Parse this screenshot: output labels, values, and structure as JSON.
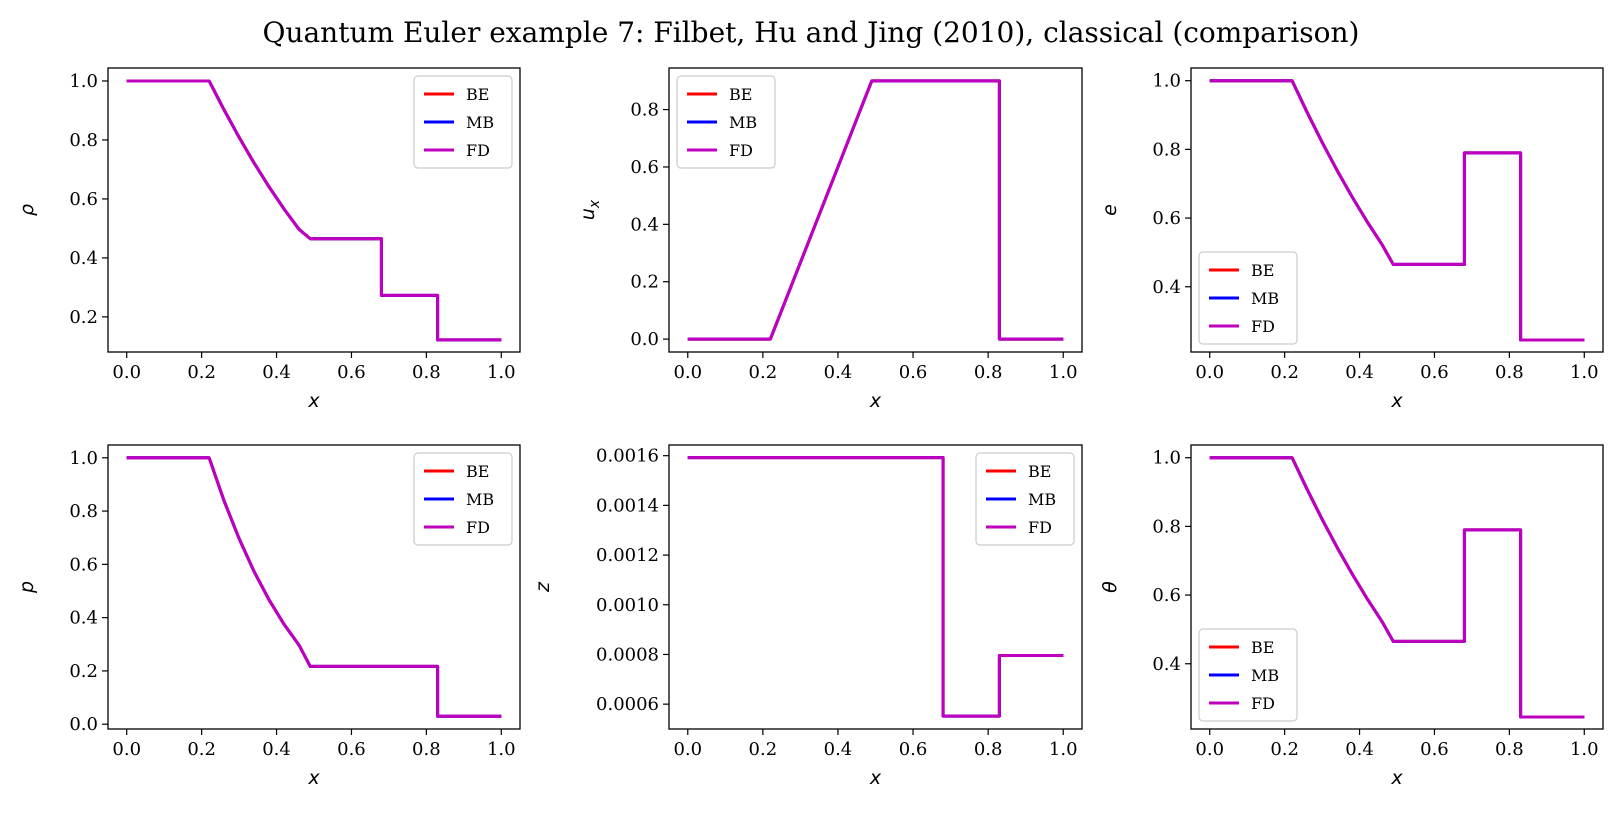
{
  "figure": {
    "title": "Quantum Euler example 7: Filbet, Hu and Jing (2010), classical (comparison)"
  },
  "colors": {
    "BE": "#ff0000",
    "MB": "#0000ff",
    "FD": "#bf00bf"
  },
  "chart_data": [
    {
      "type": "line",
      "ylabel": "ρ",
      "xlabel": "x",
      "xlim": [
        -0.05,
        1.05
      ],
      "ylim": [
        0.081,
        1.044
      ],
      "xticks": [
        "0.0",
        "0.2",
        "0.4",
        "0.6",
        "0.8",
        "1.0"
      ],
      "xtick_values": [
        0,
        0.2,
        0.4,
        0.6,
        0.8,
        1.0
      ],
      "yticks": [
        "0.2",
        "0.4",
        "0.6",
        "0.8",
        "1.0"
      ],
      "ytick_values": [
        0.2,
        0.4,
        0.6,
        0.8,
        1.0
      ],
      "legend_position": "upper right",
      "series": [
        {
          "name": "BE",
          "x": [
            0,
            0.22,
            0.26,
            0.3,
            0.34,
            0.38,
            0.42,
            0.46,
            0.49,
            0.68,
            0.68,
            0.83,
            0.83,
            1.0
          ],
          "y": [
            1.0,
            1.0,
            0.902,
            0.809,
            0.722,
            0.641,
            0.566,
            0.497,
            0.465,
            0.465,
            0.273,
            0.273,
            0.122,
            0.122
          ]
        },
        {
          "name": "MB",
          "x": [
            0,
            0.22,
            0.26,
            0.3,
            0.34,
            0.38,
            0.42,
            0.46,
            0.49,
            0.68,
            0.68,
            0.83,
            0.83,
            1.0
          ],
          "y": [
            1.0,
            1.0,
            0.902,
            0.809,
            0.722,
            0.641,
            0.566,
            0.497,
            0.465,
            0.465,
            0.273,
            0.273,
            0.122,
            0.122
          ]
        },
        {
          "name": "FD",
          "x": [
            0,
            0.22,
            0.26,
            0.3,
            0.34,
            0.38,
            0.42,
            0.46,
            0.49,
            0.68,
            0.68,
            0.83,
            0.83,
            1.0
          ],
          "y": [
            1.0,
            1.0,
            0.902,
            0.809,
            0.722,
            0.641,
            0.566,
            0.497,
            0.465,
            0.465,
            0.273,
            0.273,
            0.122,
            0.122
          ]
        }
      ]
    },
    {
      "type": "line",
      "ylabel": "u_x",
      "xlabel": "x",
      "xlim": [
        -0.05,
        1.05
      ],
      "ylim": [
        -0.045,
        0.945
      ],
      "xticks": [
        "0.0",
        "0.2",
        "0.4",
        "0.6",
        "0.8",
        "1.0"
      ],
      "xtick_values": [
        0,
        0.2,
        0.4,
        0.6,
        0.8,
        1.0
      ],
      "yticks": [
        "0.0",
        "0.2",
        "0.4",
        "0.6",
        "0.8"
      ],
      "ytick_values": [
        0,
        0.2,
        0.4,
        0.6,
        0.8
      ],
      "legend_position": "upper left",
      "series": [
        {
          "name": "BE",
          "x": [
            0,
            0.22,
            0.49,
            0.83,
            0.83,
            1.0
          ],
          "y": [
            0,
            0,
            0.9,
            0.9,
            0,
            0
          ]
        },
        {
          "name": "MB",
          "x": [
            0,
            0.22,
            0.49,
            0.83,
            0.83,
            1.0
          ],
          "y": [
            0,
            0,
            0.9,
            0.9,
            0,
            0
          ]
        },
        {
          "name": "FD",
          "x": [
            0,
            0.22,
            0.49,
            0.83,
            0.83,
            1.0
          ],
          "y": [
            0,
            0,
            0.9,
            0.9,
            0,
            0
          ]
        }
      ]
    },
    {
      "type": "line",
      "ylabel": "e",
      "xlabel": "x",
      "xlim": [
        -0.05,
        1.05
      ],
      "ylim": [
        0.21,
        1.037
      ],
      "xticks": [
        "0.0",
        "0.2",
        "0.4",
        "0.6",
        "0.8",
        "1.0"
      ],
      "xtick_values": [
        0,
        0.2,
        0.4,
        0.6,
        0.8,
        1.0
      ],
      "yticks": [
        "0.4",
        "0.6",
        "0.8",
        "1.0"
      ],
      "ytick_values": [
        0.4,
        0.6,
        0.8,
        1.0
      ],
      "legend_position": "lower left",
      "series": [
        {
          "name": "BE",
          "x": [
            0,
            0.22,
            0.26,
            0.3,
            0.34,
            0.38,
            0.42,
            0.46,
            0.49,
            0.68,
            0.68,
            0.83,
            0.83,
            1.0
          ],
          "y": [
            1.0,
            1.0,
            0.908,
            0.821,
            0.739,
            0.662,
            0.59,
            0.523,
            0.465,
            0.465,
            0.79,
            0.79,
            0.245,
            0.245
          ]
        },
        {
          "name": "MB",
          "x": [
            0,
            0.22,
            0.26,
            0.3,
            0.34,
            0.38,
            0.42,
            0.46,
            0.49,
            0.68,
            0.68,
            0.83,
            0.83,
            1.0
          ],
          "y": [
            1.0,
            1.0,
            0.908,
            0.821,
            0.739,
            0.662,
            0.59,
            0.523,
            0.465,
            0.465,
            0.79,
            0.79,
            0.245,
            0.245
          ]
        },
        {
          "name": "FD",
          "x": [
            0,
            0.22,
            0.26,
            0.3,
            0.34,
            0.38,
            0.42,
            0.46,
            0.49,
            0.68,
            0.68,
            0.83,
            0.83,
            1.0
          ],
          "y": [
            1.0,
            1.0,
            0.908,
            0.821,
            0.739,
            0.662,
            0.59,
            0.523,
            0.465,
            0.465,
            0.79,
            0.79,
            0.245,
            0.245
          ]
        }
      ]
    },
    {
      "type": "line",
      "ylabel": "p",
      "xlabel": "x",
      "xlim": [
        -0.05,
        1.05
      ],
      "ylim": [
        -0.018,
        1.048
      ],
      "xticks": [
        "0.0",
        "0.2",
        "0.4",
        "0.6",
        "0.8",
        "1.0"
      ],
      "xtick_values": [
        0,
        0.2,
        0.4,
        0.6,
        0.8,
        1.0
      ],
      "yticks": [
        "0.0",
        "0.2",
        "0.4",
        "0.6",
        "0.8",
        "1.0"
      ],
      "ytick_values": [
        0,
        0.2,
        0.4,
        0.6,
        0.8,
        1.0
      ],
      "legend_position": "upper right",
      "series": [
        {
          "name": "BE",
          "x": [
            0,
            0.22,
            0.26,
            0.3,
            0.34,
            0.38,
            0.42,
            0.46,
            0.49,
            0.83,
            0.83,
            1.0
          ],
          "y": [
            1.0,
            1.0,
            0.838,
            0.697,
            0.573,
            0.467,
            0.375,
            0.297,
            0.217,
            0.217,
            0.03,
            0.03
          ]
        },
        {
          "name": "MB",
          "x": [
            0,
            0.22,
            0.26,
            0.3,
            0.34,
            0.38,
            0.42,
            0.46,
            0.49,
            0.83,
            0.83,
            1.0
          ],
          "y": [
            1.0,
            1.0,
            0.838,
            0.697,
            0.573,
            0.467,
            0.375,
            0.297,
            0.217,
            0.217,
            0.03,
            0.03
          ]
        },
        {
          "name": "FD",
          "x": [
            0,
            0.22,
            0.26,
            0.3,
            0.34,
            0.38,
            0.42,
            0.46,
            0.49,
            0.83,
            0.83,
            1.0
          ],
          "y": [
            1.0,
            1.0,
            0.838,
            0.697,
            0.573,
            0.467,
            0.375,
            0.297,
            0.217,
            0.217,
            0.03,
            0.03
          ]
        }
      ]
    },
    {
      "type": "line",
      "ylabel": "z",
      "xlabel": "x",
      "xlim": [
        -0.05,
        1.05
      ],
      "ylim": [
        0.0005,
        0.001643
      ],
      "xticks": [
        "0.0",
        "0.2",
        "0.4",
        "0.6",
        "0.8",
        "1.0"
      ],
      "xtick_values": [
        0,
        0.2,
        0.4,
        0.6,
        0.8,
        1.0
      ],
      "yticks": [
        "0.0006",
        "0.0008",
        "0.0010",
        "0.0012",
        "0.0014",
        "0.0016"
      ],
      "ytick_values": [
        0.0006,
        0.0008,
        0.001,
        0.0012,
        0.0014,
        0.0016
      ],
      "legend_position": "upper right",
      "series": [
        {
          "name": "BE",
          "x": [
            0,
            0.68,
            0.68,
            0.83,
            0.83,
            1.0
          ],
          "y": [
            0.001592,
            0.001592,
            0.000552,
            0.000552,
            0.000796,
            0.000796
          ]
        },
        {
          "name": "MB",
          "x": [
            0,
            0.68,
            0.68,
            0.83,
            0.83,
            1.0
          ],
          "y": [
            0.001592,
            0.001592,
            0.000552,
            0.000552,
            0.000796,
            0.000796
          ]
        },
        {
          "name": "FD",
          "x": [
            0,
            0.68,
            0.68,
            0.83,
            0.83,
            1.0
          ],
          "y": [
            0.001592,
            0.001592,
            0.000552,
            0.000552,
            0.000796,
            0.000796
          ]
        }
      ]
    },
    {
      "type": "line",
      "ylabel": "θ",
      "xlabel": "x",
      "xlim": [
        -0.05,
        1.05
      ],
      "ylim": [
        0.21,
        1.037
      ],
      "xticks": [
        "0.0",
        "0.2",
        "0.4",
        "0.6",
        "0.8",
        "1.0"
      ],
      "xtick_values": [
        0,
        0.2,
        0.4,
        0.6,
        0.8,
        1.0
      ],
      "yticks": [
        "0.4",
        "0.6",
        "0.8",
        "1.0"
      ],
      "ytick_values": [
        0.4,
        0.6,
        0.8,
        1.0
      ],
      "legend_position": "lower left",
      "series": [
        {
          "name": "BE",
          "x": [
            0,
            0.22,
            0.26,
            0.3,
            0.34,
            0.38,
            0.42,
            0.46,
            0.49,
            0.68,
            0.68,
            0.83,
            0.83,
            1.0
          ],
          "y": [
            1.0,
            1.0,
            0.908,
            0.821,
            0.739,
            0.662,
            0.59,
            0.523,
            0.465,
            0.465,
            0.79,
            0.79,
            0.245,
            0.245
          ]
        },
        {
          "name": "MB",
          "x": [
            0,
            0.22,
            0.26,
            0.3,
            0.34,
            0.38,
            0.42,
            0.46,
            0.49,
            0.68,
            0.68,
            0.83,
            0.83,
            1.0
          ],
          "y": [
            1.0,
            1.0,
            0.908,
            0.821,
            0.739,
            0.662,
            0.59,
            0.523,
            0.465,
            0.465,
            0.79,
            0.79,
            0.245,
            0.245
          ]
        },
        {
          "name": "FD",
          "x": [
            0,
            0.22,
            0.26,
            0.3,
            0.34,
            0.38,
            0.42,
            0.46,
            0.49,
            0.68,
            0.68,
            0.83,
            0.83,
            1.0
          ],
          "y": [
            1.0,
            1.0,
            0.908,
            0.821,
            0.739,
            0.662,
            0.59,
            0.523,
            0.465,
            0.465,
            0.79,
            0.79,
            0.245,
            0.245
          ]
        }
      ]
    }
  ]
}
